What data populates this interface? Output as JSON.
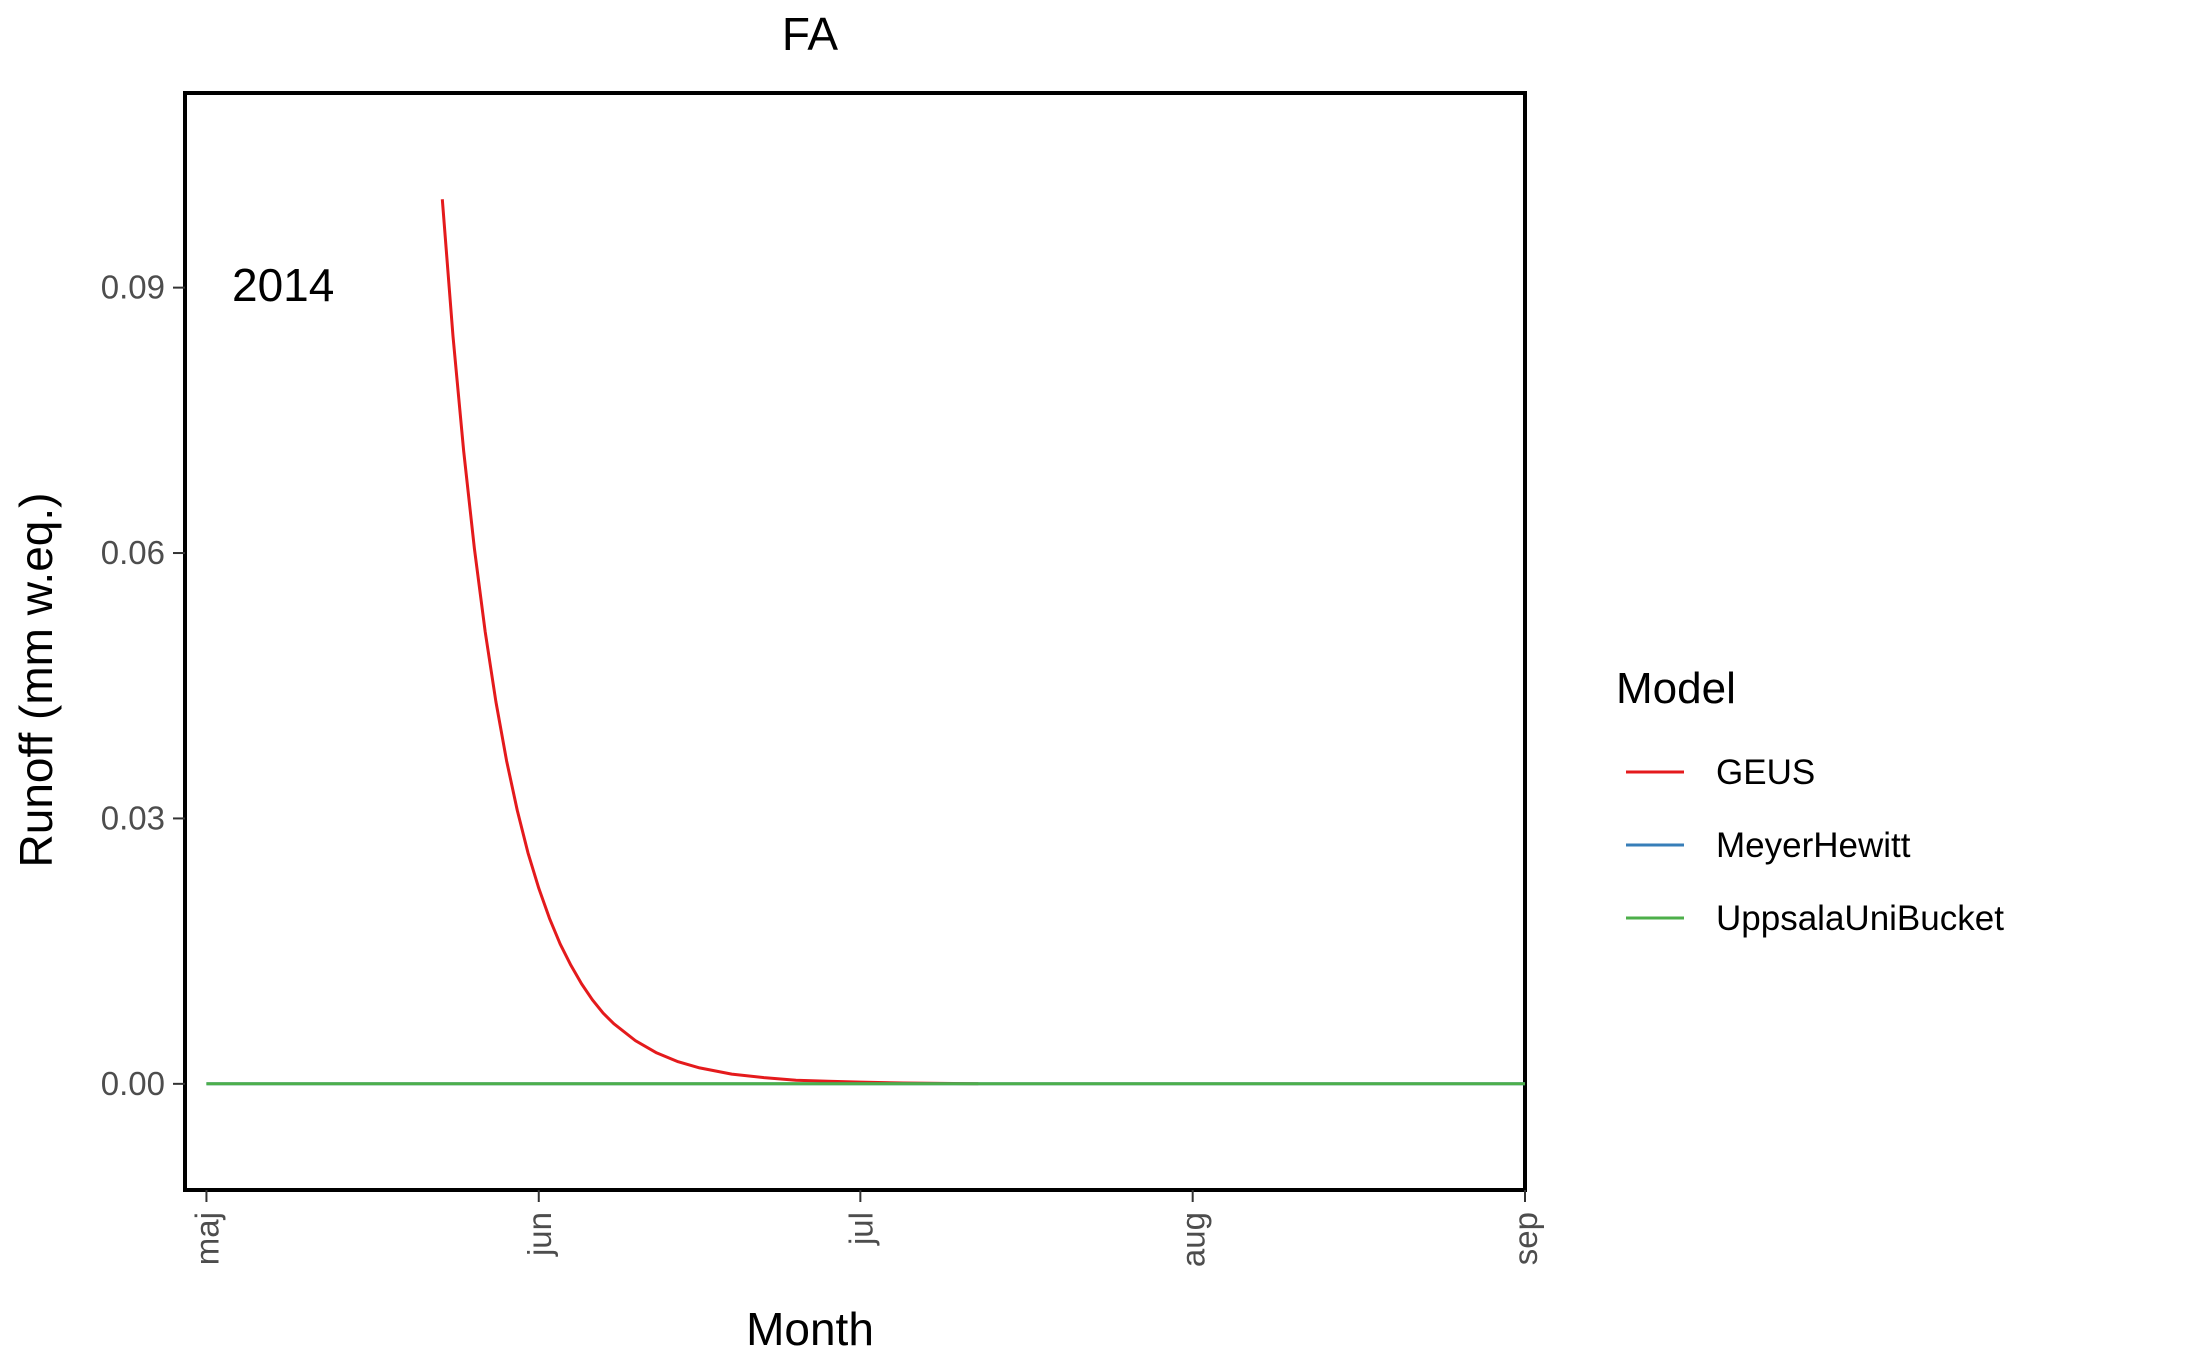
{
  "chart_data": {
    "type": "line",
    "title": "FA",
    "xlabel": "Month",
    "ylabel": "Runoff (mm w.eq.)",
    "annotation": "2014",
    "x_ticks": [
      "maj",
      "jun",
      "jul",
      "aug",
      "sep"
    ],
    "y_ticks": [
      "0.00",
      "0.03",
      "0.06",
      "0.09"
    ],
    "y_tick_values": [
      0.0,
      0.03,
      0.06,
      0.09
    ],
    "ylim": [
      -0.012,
      0.112
    ],
    "xlim": [
      "2014-04-29",
      "2014-09-01"
    ],
    "grid": false,
    "legend_position": "right",
    "legend_title": "Model",
    "series": [
      {
        "name": "GEUS",
        "color": "#e41a1c",
        "x": [
          "2014-05-23",
          "2014-05-24",
          "2014-05-25",
          "2014-05-26",
          "2014-05-27",
          "2014-05-28",
          "2014-05-29",
          "2014-05-30",
          "2014-05-31",
          "2014-06-01",
          "2014-06-02",
          "2014-06-03",
          "2014-06-04",
          "2014-06-05",
          "2014-06-06",
          "2014-06-07",
          "2014-06-08",
          "2014-06-10",
          "2014-06-12",
          "2014-06-14",
          "2014-06-16",
          "2014-06-19",
          "2014-06-22",
          "2014-06-25",
          "2014-06-28",
          "2014-07-01",
          "2014-07-05",
          "2014-07-12"
        ],
        "y": [
          0.1,
          0.0845,
          0.0715,
          0.0605,
          0.0511,
          0.0432,
          0.0365,
          0.0309,
          0.0261,
          0.0221,
          0.0187,
          0.0158,
          0.0134,
          0.0113,
          0.0095,
          0.008,
          0.0068,
          0.0049,
          0.0035,
          0.0025,
          0.0018,
          0.0011,
          0.0007,
          0.0004,
          0.0003,
          0.0002,
          0.0001,
          0.0
        ]
      },
      {
        "name": "MeyerHewitt",
        "color": "#377eb8",
        "x": [
          "2014-05-01",
          "2014-09-01"
        ],
        "y": [
          0.0,
          0.0
        ]
      },
      {
        "name": "UppsalaUniBucket",
        "color": "#4daf4a",
        "x": [
          "2014-05-01",
          "2014-09-01"
        ],
        "y": [
          0.0,
          0.0
        ]
      }
    ]
  }
}
